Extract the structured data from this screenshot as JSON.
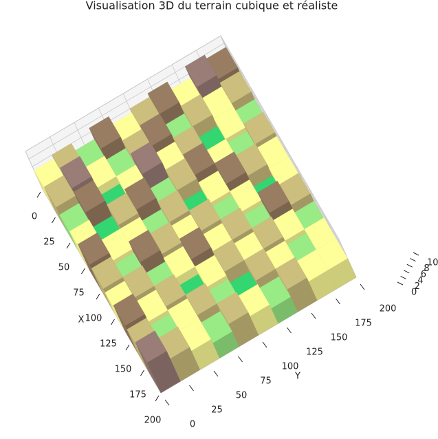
{
  "chart_data": {
    "type": "surface3d",
    "title": "Visualisation 3D du terrain cubique et réaliste",
    "xlabel": "X",
    "ylabel": "Y",
    "colormap": "terrain",
    "xlim": [
      0,
      200
    ],
    "ylim": [
      0,
      200
    ],
    "zlim": [
      0,
      10
    ],
    "xticks": [
      0,
      25,
      50,
      75,
      100,
      125,
      150,
      175,
      200
    ],
    "yticks": [
      0,
      25,
      50,
      75,
      100,
      125,
      150,
      175,
      200
    ],
    "zticks": [
      0,
      2,
      4,
      6,
      8,
      10
    ],
    "x": [
      10,
      30,
      50,
      70,
      90,
      110,
      130,
      150,
      170,
      190
    ],
    "y": [
      10,
      30,
      50,
      70,
      90,
      110,
      130,
      150,
      170,
      190
    ],
    "z": [
      [
        5,
        6,
        4,
        7,
        5,
        6,
        7,
        5,
        8,
        7
      ],
      [
        6,
        8,
        5,
        4,
        6,
        7,
        4,
        6,
        5,
        6
      ],
      [
        4,
        7,
        3,
        5,
        8,
        5,
        6,
        3,
        5,
        4
      ],
      [
        5,
        3,
        6,
        7,
        4,
        6,
        7,
        5,
        4,
        6
      ],
      [
        7,
        5,
        5,
        4,
        6,
        3,
        5,
        7,
        6,
        5
      ],
      [
        6,
        4,
        7,
        6,
        5,
        6,
        4,
        5,
        3,
        5
      ],
      [
        5,
        6,
        4,
        5,
        7,
        5,
        6,
        4,
        7,
        6
      ],
      [
        7,
        5,
        6,
        3,
        5,
        6,
        5,
        6,
        5,
        4
      ],
      [
        6,
        4,
        5,
        6,
        4,
        3,
        6,
        5,
        4,
        5
      ],
      [
        8,
        6,
        5,
        4,
        6,
        5,
        4,
        6,
        5,
        5
      ]
    ]
  }
}
